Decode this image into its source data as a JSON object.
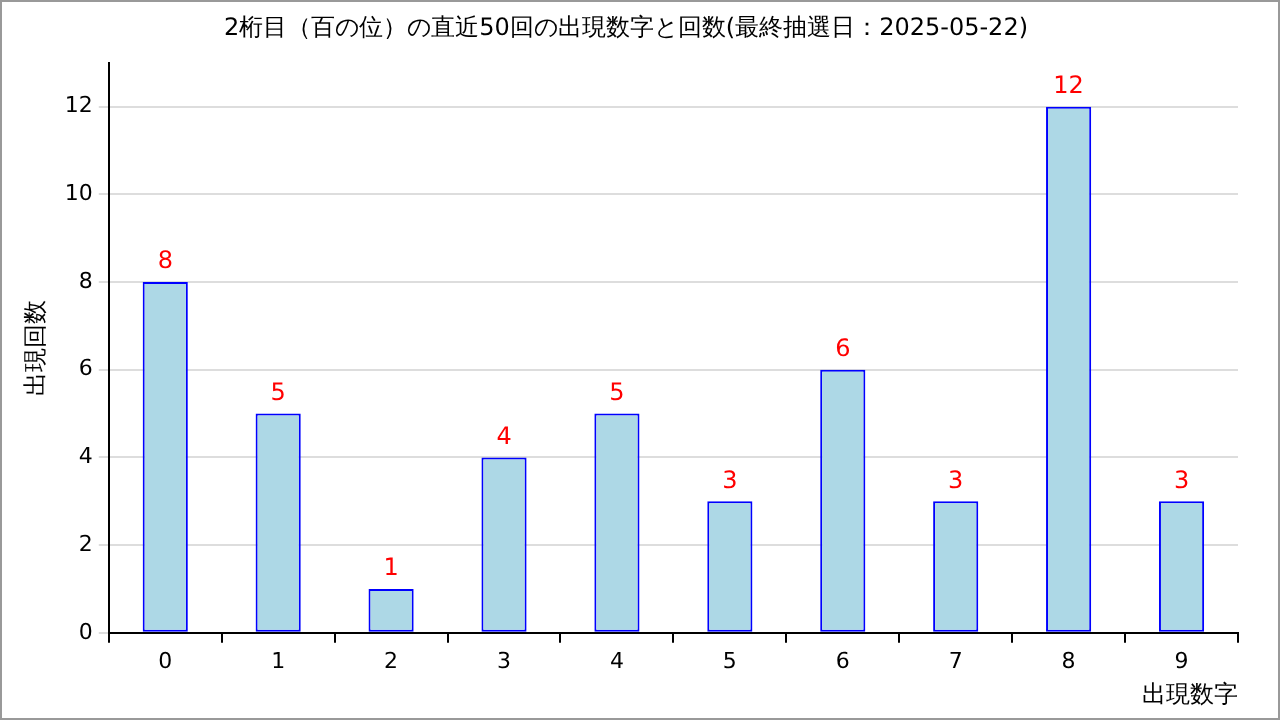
{
  "chart_data": {
    "type": "bar",
    "title": "2桁目（百の位）の直近50回の出現数字と回数(最終抽選日：2025-05-22)",
    "xlabel": "出現数字",
    "ylabel": "出現回数",
    "categories": [
      "0",
      "1",
      "2",
      "3",
      "4",
      "5",
      "6",
      "7",
      "8",
      "9"
    ],
    "series": [
      {
        "color": "#add8e6",
        "values": [
          8,
          5,
          1,
          4,
          5,
          3,
          6,
          3,
          12,
          3
        ]
      }
    ],
    "ylim": [
      0,
      13
    ],
    "yticks": [
      0,
      2,
      4,
      6,
      8,
      10,
      12
    ],
    "grid": "y",
    "legend": false,
    "data_labels": true
  }
}
